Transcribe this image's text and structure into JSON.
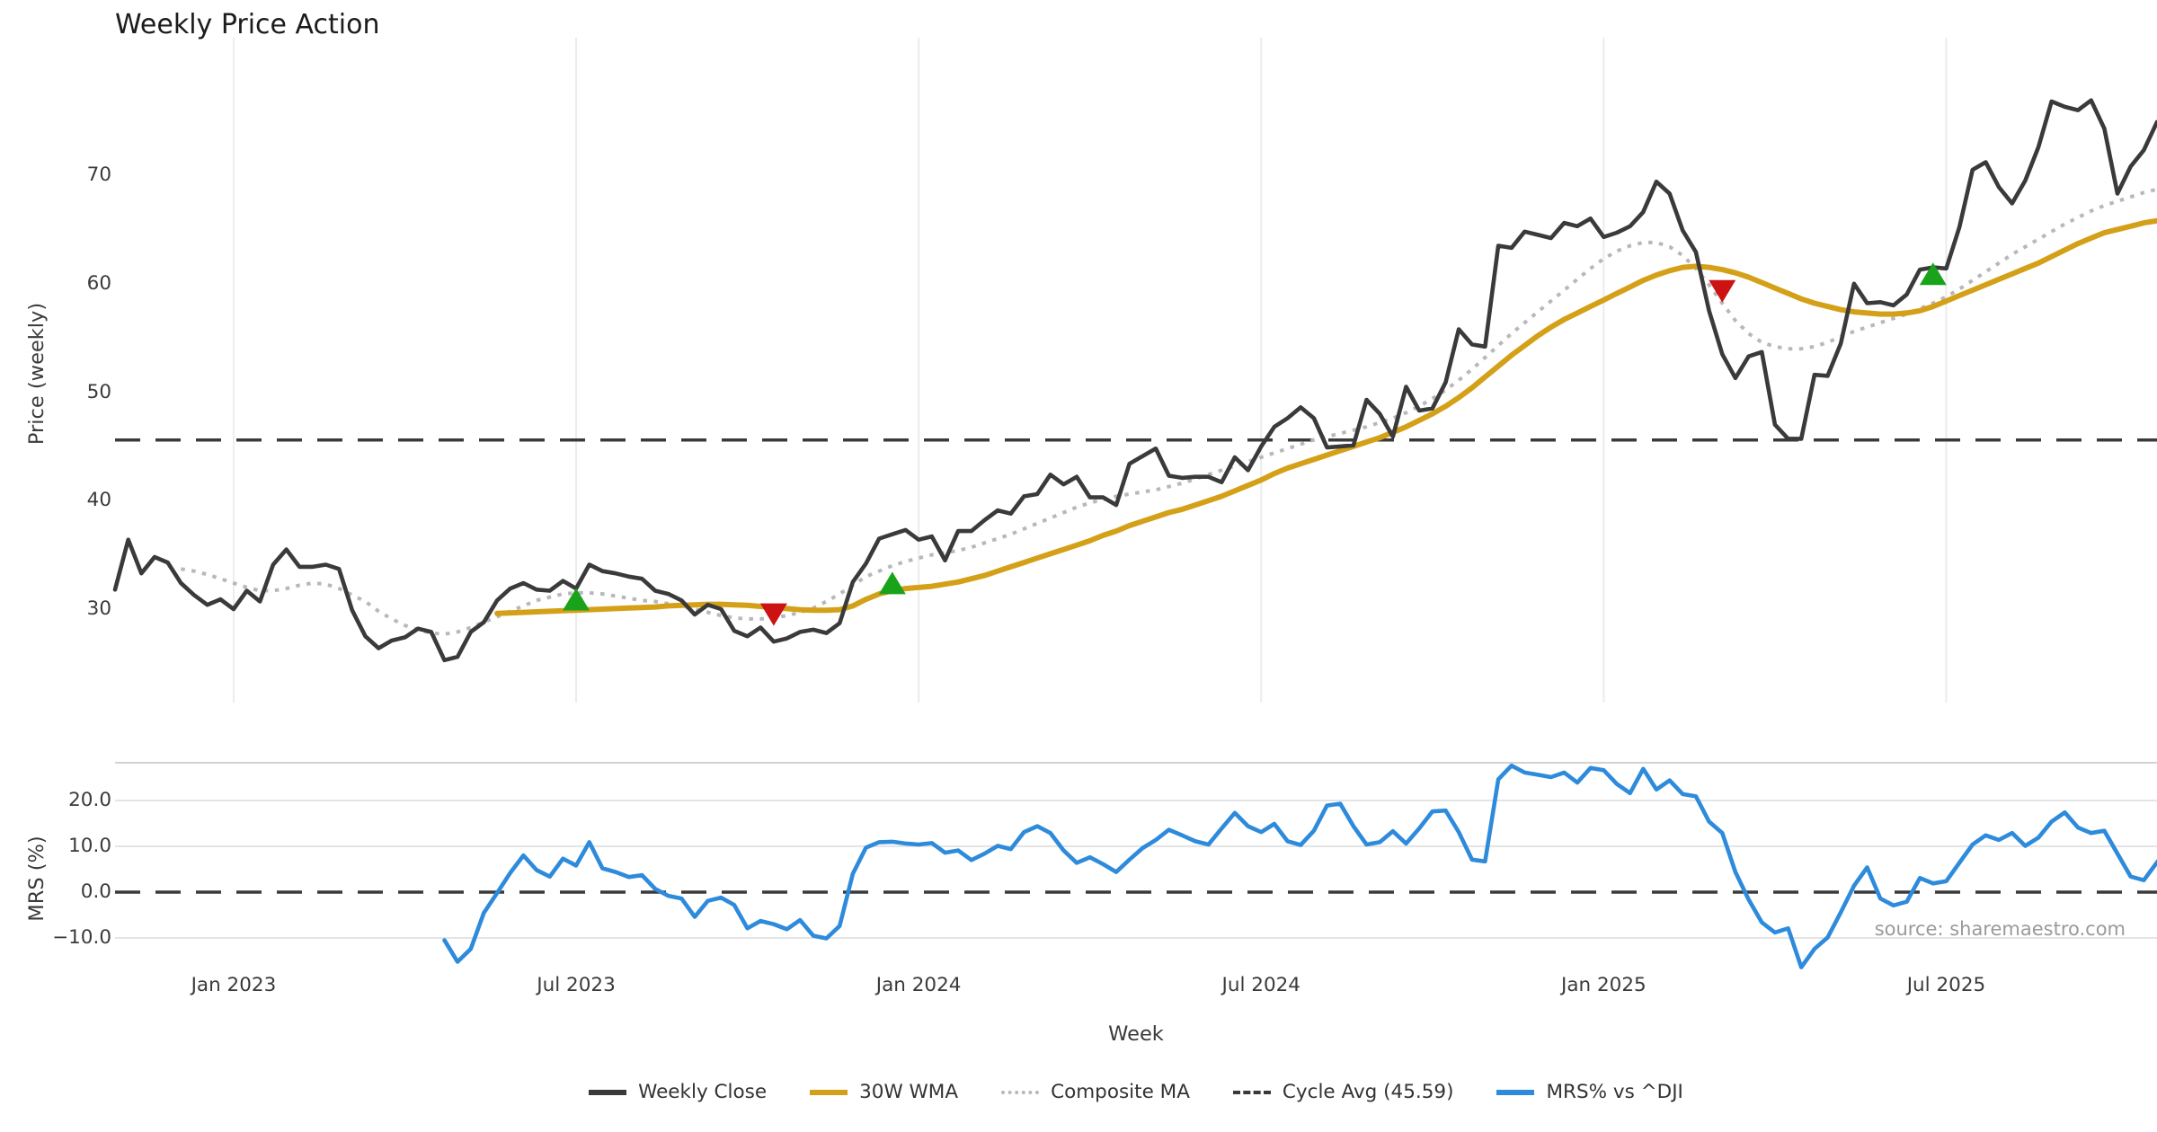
{
  "title": "Weekly Price Action",
  "source_note": "source: sharemaestro.com",
  "colors": {
    "close": "#3a3a3a",
    "wma": "#d4a017",
    "composite": "#b8b8b8",
    "cycle": "#3a3a3a",
    "mrs": "#2e8bdb",
    "buy": "#1aa31a",
    "sell": "#cc1212",
    "grid": "#ececec",
    "mrs_grid": "#e4e4e4",
    "mrs_border": "#d2d2d2",
    "text": "#3a3a3a",
    "muted": "#9a9a9a"
  },
  "legend": {
    "items": [
      {
        "label": "Weekly Close",
        "swatch": "solid-dark"
      },
      {
        "label": "30W WMA",
        "swatch": "solid-gold"
      },
      {
        "label": "Composite MA",
        "swatch": "dotted-gray"
      },
      {
        "label": "Cycle Avg (45.59)",
        "swatch": "dashed-dark"
      },
      {
        "label": "MRS% vs ^DJI",
        "swatch": "solid-blue"
      }
    ]
  },
  "axis_labels": {
    "price_ylabel": "Price (weekly)",
    "mrs_ylabel": "MRS (%)",
    "x_label": "Week",
    "price_yticks": [
      "30",
      "40",
      "50",
      "60",
      "70"
    ],
    "mrs_yticks": [
      "20.0",
      "10.0",
      "0.0",
      "−10.0"
    ],
    "x_ticks": [
      "Jan 2023",
      "Jul 2023",
      "Jan 2024",
      "Jul 2024",
      "Jan 2025",
      "Jul 2025"
    ]
  },
  "chart_data": {
    "type": "line",
    "x_unit": "week_index",
    "weeks_total": 156,
    "x_tick_weeks": [
      9,
      35,
      61,
      87,
      113,
      139
    ],
    "price_panel": {
      "ytick_values": [
        30,
        40,
        50,
        60,
        70
      ],
      "cycle_avg": 45.59,
      "series": [
        {
          "name": "Weekly Close",
          "start_week": 0,
          "values": [
            31.8,
            36.4,
            33.3,
            34.8,
            34.3,
            32.4,
            31.3,
            30.4,
            30.9,
            30.0,
            31.7,
            30.7,
            34.1,
            35.5,
            33.9,
            33.9,
            34.1,
            33.7,
            29.9,
            27.5,
            26.4,
            27.1,
            27.4,
            28.2,
            27.9,
            25.3,
            25.6,
            27.9,
            28.8,
            30.8,
            31.9,
            32.4,
            31.8,
            31.7,
            32.6,
            31.9,
            34.1,
            33.5,
            33.3,
            33.0,
            32.8,
            31.7,
            31.4,
            30.8,
            29.5,
            30.4,
            30.0,
            28.0,
            27.5,
            28.3,
            27.0,
            27.3,
            27.9,
            28.1,
            27.8,
            28.7,
            32.5,
            34.2,
            36.5,
            36.9,
            37.3,
            36.4,
            36.7,
            34.5,
            37.2,
            37.2,
            38.2,
            39.1,
            38.8,
            40.4,
            40.6,
            42.4,
            41.5,
            42.2,
            40.3,
            40.3,
            39.6,
            43.4,
            44.1,
            44.8,
            42.3,
            42.1,
            42.2,
            42.2,
            41.7,
            44.0,
            42.8,
            45.0,
            46.8,
            47.6,
            48.6,
            47.6,
            44.9,
            45.0,
            45.1,
            49.3,
            48.0,
            45.9,
            50.5,
            48.3,
            48.5,
            50.9,
            55.8,
            54.4,
            54.2,
            63.5,
            63.3,
            64.8,
            64.5,
            64.2,
            65.6,
            65.3,
            66.0,
            64.3,
            64.7,
            65.3,
            66.6,
            69.4,
            68.3,
            64.9,
            62.9,
            57.5,
            53.5,
            51.3,
            53.3,
            53.7,
            47.0,
            45.7,
            45.7,
            51.6,
            51.5,
            54.5,
            60.0,
            58.2,
            58.3,
            58.0,
            59.0,
            61.3,
            61.5,
            61.4,
            65.2,
            70.5,
            71.2,
            68.9,
            67.4,
            69.5,
            72.6,
            76.8,
            76.3,
            76.0,
            76.9,
            74.3,
            68.3,
            70.8,
            72.3,
            74.9
          ]
        },
        {
          "name": "30W WMA",
          "start_week": 29,
          "values": [
            29.6,
            29.65,
            29.7,
            29.75,
            29.8,
            29.85,
            29.9,
            29.95,
            30.0,
            30.05,
            30.1,
            30.15,
            30.2,
            30.3,
            30.35,
            30.4,
            30.45,
            30.45,
            30.4,
            30.35,
            30.25,
            30.15,
            30.05,
            29.95,
            29.9,
            29.9,
            29.95,
            30.3,
            30.9,
            31.4,
            31.7,
            31.9,
            32.0,
            32.1,
            32.3,
            32.5,
            32.8,
            33.1,
            33.5,
            33.9,
            34.3,
            34.7,
            35.1,
            35.5,
            35.9,
            36.3,
            36.8,
            37.2,
            37.7,
            38.1,
            38.5,
            38.9,
            39.2,
            39.6,
            40.0,
            40.4,
            40.9,
            41.4,
            41.9,
            42.5,
            43.0,
            43.4,
            43.8,
            44.2,
            44.6,
            45.0,
            45.4,
            45.8,
            46.3,
            46.8,
            47.4,
            48.0,
            48.7,
            49.5,
            50.4,
            51.4,
            52.4,
            53.4,
            54.3,
            55.2,
            56.0,
            56.7,
            57.3,
            57.9,
            58.5,
            59.1,
            59.7,
            60.3,
            60.8,
            61.2,
            61.5,
            61.6,
            61.5,
            61.3,
            61.0,
            60.6,
            60.1,
            59.6,
            59.1,
            58.6,
            58.2,
            57.9,
            57.6,
            57.4,
            57.3,
            57.2,
            57.2,
            57.3,
            57.5,
            57.9,
            58.4,
            58.9,
            59.4,
            59.9,
            60.4,
            60.9,
            61.4,
            61.9,
            62.5,
            63.1,
            63.7,
            64.2,
            64.7,
            65.0,
            65.3,
            65.6,
            65.8
          ]
        },
        {
          "name": "Composite MA",
          "start_week": 5,
          "values": [
            33.7,
            33.5,
            33.2,
            32.8,
            32.4,
            32.0,
            31.7,
            31.7,
            31.9,
            32.2,
            32.4,
            32.3,
            31.9,
            31.3,
            30.7,
            29.8,
            29.1,
            28.5,
            28.1,
            27.8,
            27.7,
            27.9,
            28.3,
            28.8,
            29.3,
            29.8,
            30.3,
            30.8,
            31.1,
            31.4,
            31.5,
            31.5,
            31.4,
            31.2,
            31.0,
            30.8,
            30.7,
            30.5,
            30.3,
            30.0,
            29.7,
            29.4,
            29.2,
            29.1,
            29.1,
            29.2,
            29.4,
            29.7,
            30.1,
            30.7,
            31.4,
            32.2,
            33.0,
            33.5,
            34.0,
            34.4,
            34.7,
            35.0,
            35.2,
            35.4,
            35.7,
            36.1,
            36.5,
            36.9,
            37.4,
            37.9,
            38.4,
            38.9,
            39.4,
            39.8,
            40.1,
            40.4,
            40.6,
            40.8,
            41.0,
            41.3,
            41.6,
            42.0,
            42.4,
            42.8,
            43.2,
            43.6,
            44.0,
            44.4,
            44.8,
            45.2,
            45.6,
            45.9,
            46.2,
            46.5,
            46.8,
            47.2,
            47.6,
            48.1,
            48.7,
            49.4,
            50.2,
            51.1,
            52.1,
            53.2,
            54.3,
            55.4,
            56.4,
            57.4,
            58.4,
            59.4,
            60.4,
            61.4,
            62.3,
            63.0,
            63.5,
            63.8,
            63.8,
            63.4,
            62.6,
            61.4,
            59.9,
            58.2,
            56.6,
            55.4,
            54.6,
            54.2,
            54.0,
            54.0,
            54.2,
            54.6,
            55.1,
            55.6,
            56.0,
            56.4,
            56.8,
            57.2,
            57.7,
            58.2,
            58.8,
            59.5,
            60.3,
            61.1,
            61.9,
            62.7,
            63.4,
            64.1,
            64.8,
            65.5,
            66.1,
            66.7,
            67.2,
            67.6,
            68.0,
            68.4,
            68.7
          ]
        }
      ],
      "markers": {
        "buy": [
          {
            "week": 35,
            "price": 30.7
          },
          {
            "week": 59,
            "price": 32.2
          },
          {
            "week": 138,
            "price": 60.7
          }
        ],
        "sell": [
          {
            "week": 50,
            "price": 29.7
          },
          {
            "week": 122,
            "price": 59.5
          }
        ]
      }
    },
    "mrs_panel": {
      "ytick_values": [
        20,
        10,
        0,
        -10
      ],
      "zero_line": 0,
      "series": [
        {
          "name": "MRS% vs ^DJI",
          "start_week": 25,
          "values": [
            -10.5,
            -15.2,
            -12.4,
            -4.5,
            -0.2,
            4.2,
            8.0,
            4.8,
            3.4,
            7.3,
            5.8,
            10.9,
            5.2,
            4.4,
            3.3,
            3.7,
            0.7,
            -0.8,
            -1.4,
            -5.4,
            -1.9,
            -1.2,
            -2.8,
            -7.9,
            -6.3,
            -7.0,
            -8.1,
            -6.1,
            -9.5,
            -10.1,
            -7.4,
            4.0,
            9.7,
            10.9,
            11.0,
            10.6,
            10.4,
            10.7,
            8.6,
            9.1,
            7.0,
            8.4,
            10.1,
            9.4,
            13.1,
            14.4,
            12.9,
            9.1,
            6.4,
            7.6,
            6.1,
            4.4,
            7.1,
            9.6,
            11.4,
            13.6,
            12.4,
            11.1,
            10.4,
            13.9,
            17.3,
            14.4,
            13.1,
            14.9,
            11.1,
            10.3,
            13.4,
            18.9,
            19.3,
            14.4,
            10.4,
            10.9,
            13.3,
            10.6,
            13.9,
            17.6,
            17.8,
            13.1,
            7.1,
            6.7,
            24.6,
            27.6,
            26.1,
            25.6,
            25.1,
            26.1,
            23.9,
            27.1,
            26.6,
            23.6,
            21.6,
            26.9,
            22.4,
            24.4,
            21.4,
            20.9,
            15.4,
            12.9,
            4.4,
            -1.6,
            -6.6,
            -8.8,
            -7.9,
            -16.4,
            -12.4,
            -9.9,
            -4.4,
            1.4,
            5.4,
            -1.4,
            -2.9,
            -2.1,
            3.1,
            1.9,
            2.4,
            6.4,
            10.4,
            12.4,
            11.4,
            12.9,
            10.1,
            11.9,
            15.4,
            17.4,
            14.1,
            12.9,
            13.4,
            8.4,
            3.4,
            2.6,
            6.5,
            10.2
          ]
        }
      ]
    }
  }
}
